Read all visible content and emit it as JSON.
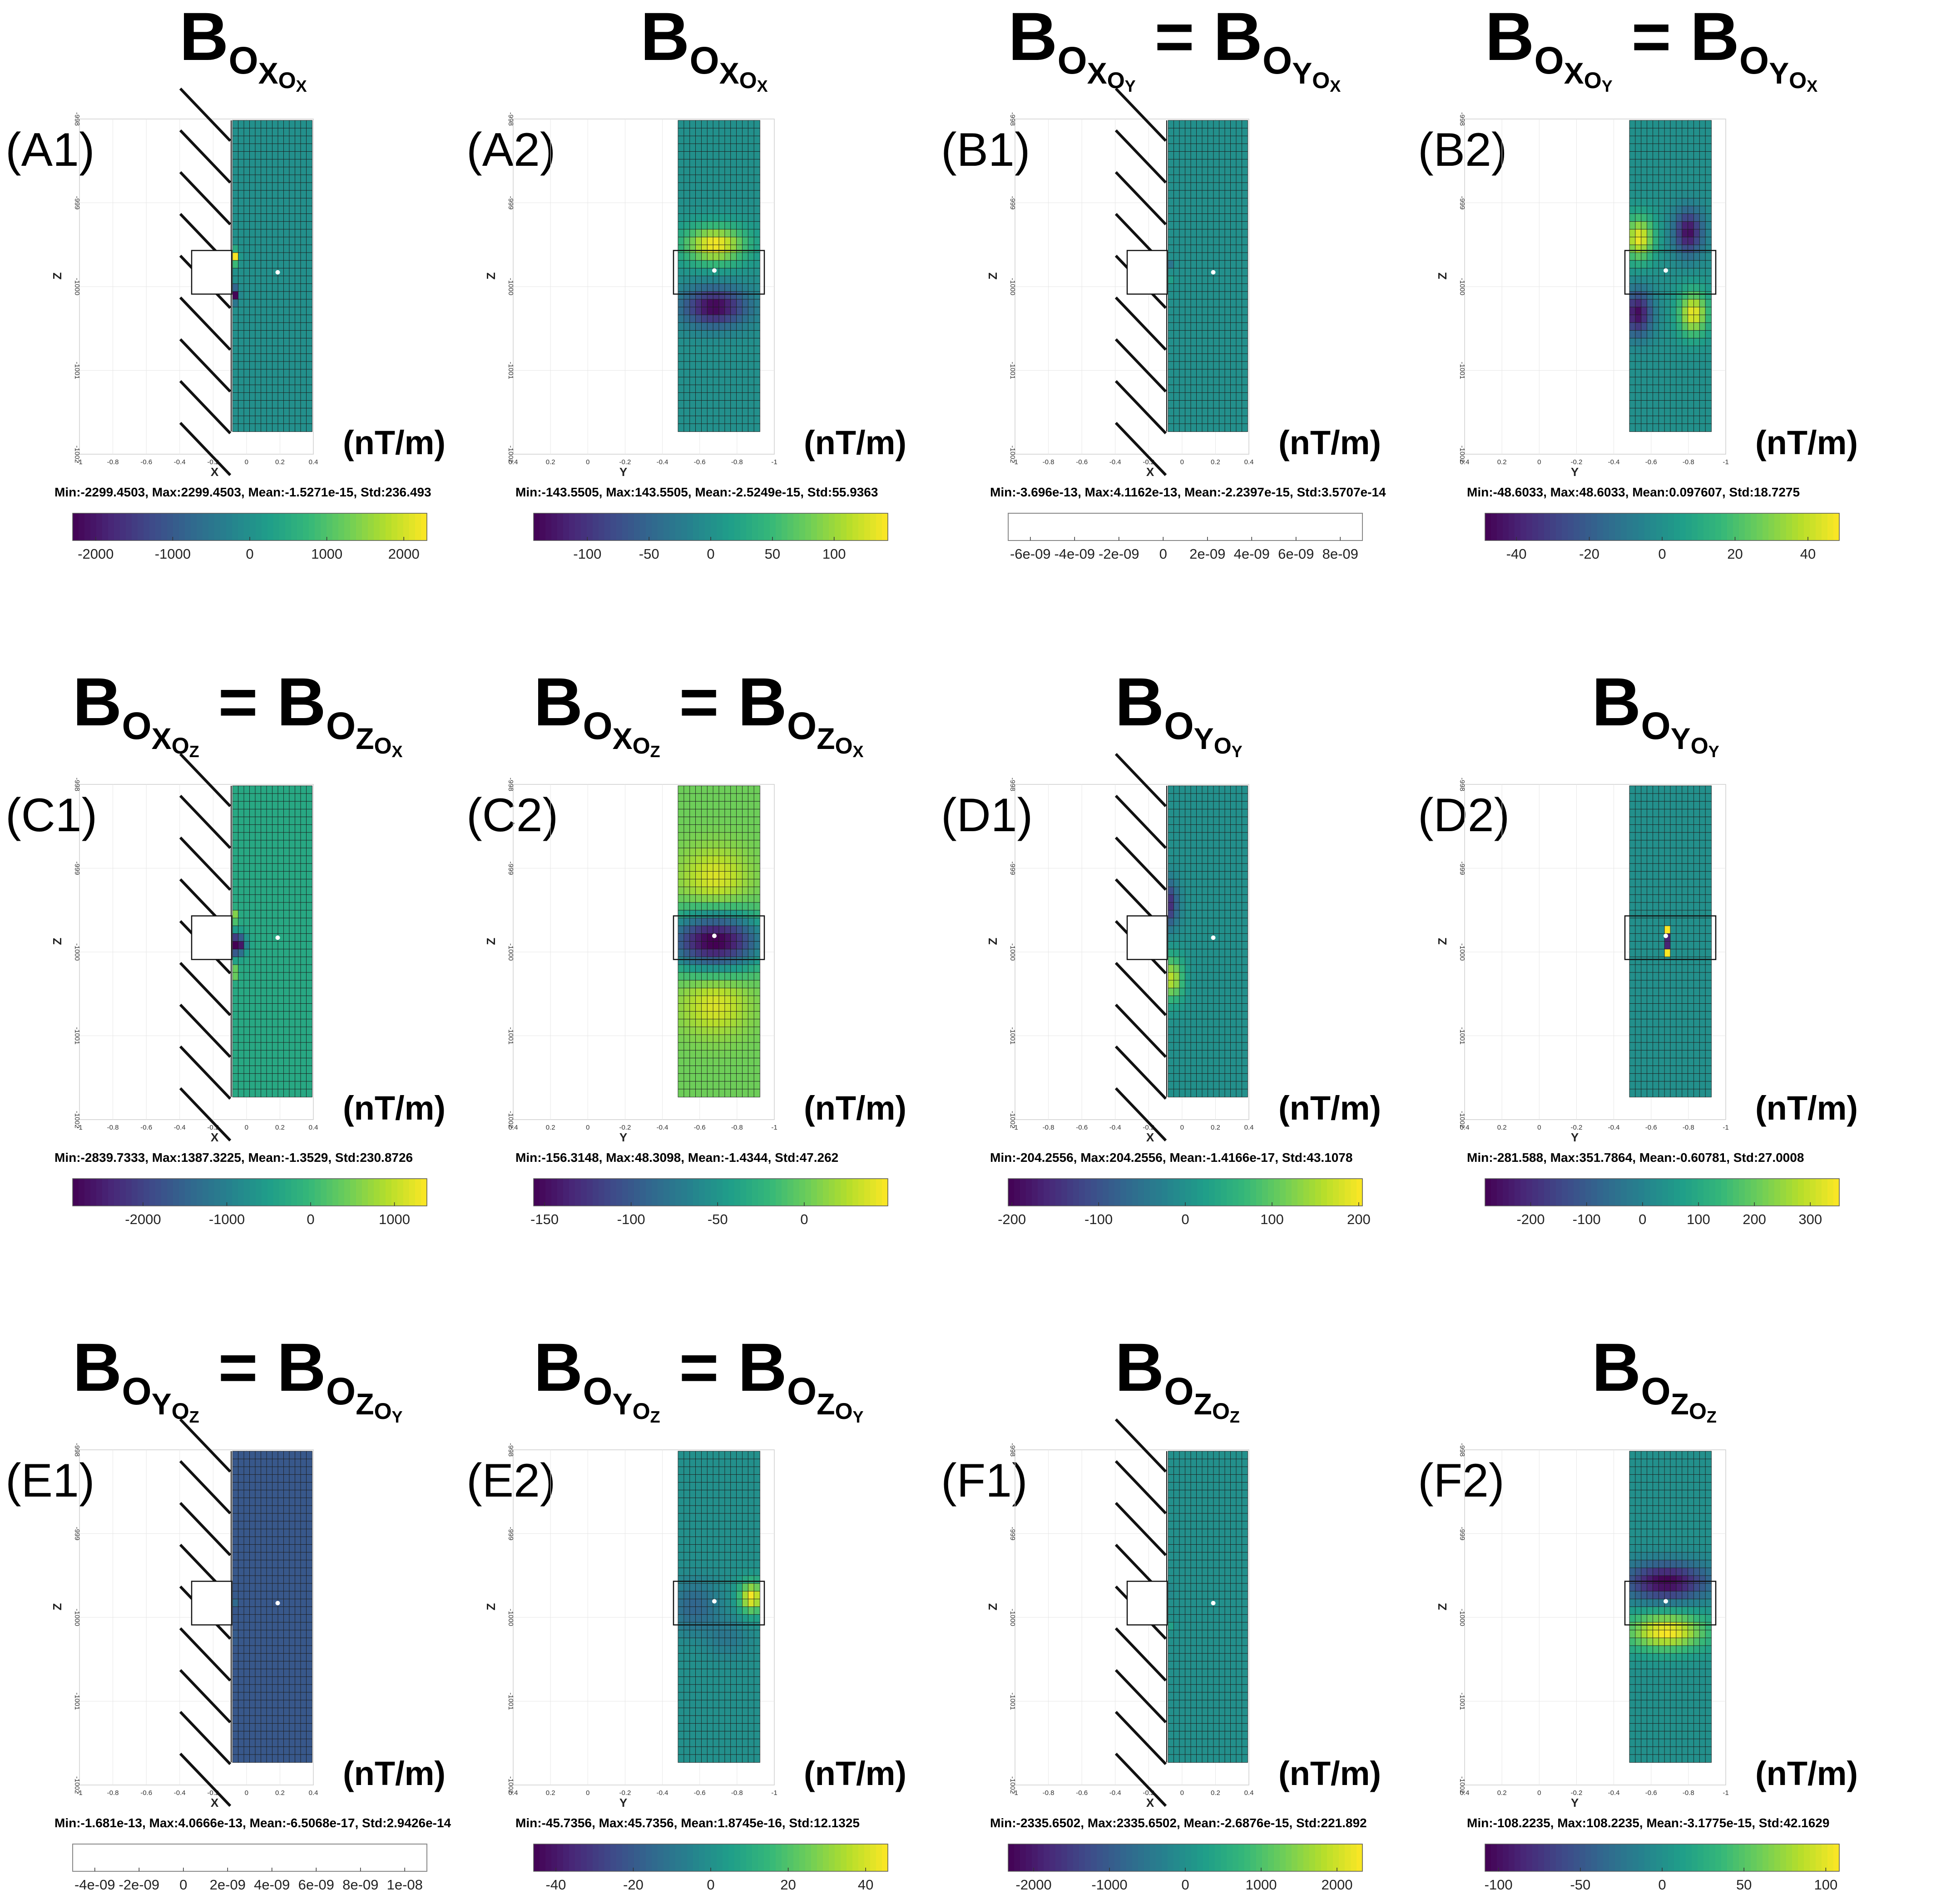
{
  "figure": {
    "unit_label": "(nT/m)",
    "colormap": [
      "#440154",
      "#482878",
      "#3e4a89",
      "#31688e",
      "#26828e",
      "#1f9e89",
      "#35b779",
      "#6ece58",
      "#b5de2b",
      "#fde725"
    ]
  },
  "chart_data": [
    {
      "id": "A1",
      "label": "(A1)",
      "type": "heatmap",
      "view": "X",
      "title": {
        "sub1": "X",
        "sub2": "X"
      },
      "xlabel": "X",
      "ylabel": "Z",
      "xticks": [
        "-1",
        "-0.8",
        "-0.6",
        "-0.4",
        "-0.2",
        "0",
        "0.2",
        "0.4"
      ],
      "zticks": [
        "-998",
        "-999",
        "-1000",
        "-1001",
        "-1002"
      ],
      "stats": "Min:-2299.4503, Max:2299.4503, Mean:-1.5271e-15, Std:236.493",
      "colorbar": {
        "min": -2299.4503,
        "max": 2299.4503,
        "ticks": [
          -2000,
          -1000,
          0,
          1000,
          2000
        ],
        "tick_labels": [
          "-2000",
          "-1000",
          "0",
          "1000",
          "2000"
        ],
        "blank": false
      },
      "pattern": "wall_antisym"
    },
    {
      "id": "A2",
      "label": "(A2)",
      "type": "heatmap",
      "view": "Y",
      "title": {
        "sub1": "X",
        "sub2": "X"
      },
      "xlabel": "Y",
      "ylabel": "Z",
      "xticks": [
        "0.4",
        "0.2",
        "0",
        "-0.2",
        "-0.4",
        "-0.6",
        "-0.8",
        "-1"
      ],
      "zticks": [
        "-998",
        "-999",
        "-1000",
        "-1001",
        "-1002"
      ],
      "stats": "Min:-143.5505, Max:143.5505, Mean:-2.5249e-15, Std:55.9363",
      "colorbar": {
        "min": -143.5505,
        "max": 143.5505,
        "ticks": [
          -100,
          -50,
          0,
          50,
          100
        ],
        "tick_labels": [
          "-100",
          "-50",
          "0",
          "50",
          "100"
        ],
        "blank": false
      },
      "pattern": "vertical_dipole_pos_top"
    },
    {
      "id": "B1",
      "label": "(B1)",
      "type": "heatmap",
      "view": "X",
      "title": {
        "sub1": "X",
        "sub2": "Y",
        "eq_sub1": "Y",
        "eq_sub2": "X"
      },
      "xlabel": "X",
      "ylabel": "Z",
      "xticks": [
        "-1",
        "-0.8",
        "-0.6",
        "-0.4",
        "-0.2",
        "0",
        "0.2",
        "0.4"
      ],
      "zticks": [
        "-998",
        "-999",
        "-1000",
        "-1001",
        "-1002"
      ],
      "stats": "Min:-3.696e-13, Max:4.1162e-13, Mean:-2.2397e-15, Std:3.5707e-14",
      "colorbar": {
        "min": -7e-09,
        "max": 9e-09,
        "ticks": [
          -6e-09,
          -4e-09,
          -2e-09,
          0,
          2e-09,
          4e-09,
          6e-09,
          8e-09
        ],
        "tick_labels": [
          "-6e-09",
          "-4e-09",
          "-2e-09",
          "0",
          "2e-09",
          "4e-09",
          "6e-09",
          "8e-09"
        ],
        "blank": true
      },
      "pattern": "wall_sparse"
    },
    {
      "id": "B2",
      "label": "(B2)",
      "type": "heatmap",
      "view": "Y",
      "title": {
        "sub1": "X",
        "sub2": "Y",
        "eq_sub1": "Y",
        "eq_sub2": "X"
      },
      "xlabel": "Y",
      "ylabel": "Z",
      "xticks": [
        "0.4",
        "0.2",
        "0",
        "-0.2",
        "-0.4",
        "-0.6",
        "-0.8",
        "-1"
      ],
      "zticks": [
        "-998",
        "-999",
        "-1000",
        "-1001",
        "-1002"
      ],
      "stats": "Min:-48.6033, Max:48.6033, Mean:0.097607, Std:18.7275",
      "colorbar": {
        "min": -48.6033,
        "max": 48.6033,
        "ticks": [
          -40,
          -20,
          0,
          20,
          40
        ],
        "tick_labels": [
          "-40",
          "-20",
          "0",
          "20",
          "40"
        ],
        "blank": false
      },
      "pattern": "quadrupole"
    },
    {
      "id": "C1",
      "label": "(C1)",
      "type": "heatmap",
      "view": "X",
      "title": {
        "sub1": "X",
        "sub2": "Z",
        "eq_sub1": "Z",
        "eq_sub2": "X"
      },
      "xlabel": "X",
      "ylabel": "Z",
      "xticks": [
        "-1",
        "-0.8",
        "-0.6",
        "-0.4",
        "-0.2",
        "0",
        "0.2",
        "0.4"
      ],
      "zticks": [
        "-998",
        "-999",
        "-1000",
        "-1001",
        "-1002"
      ],
      "stats": "Min:-2839.7333, Max:1387.3225, Mean:-1.3529, Std:230.8726",
      "colorbar": {
        "min": -2839.7333,
        "max": 1387.3225,
        "ticks": [
          -2000,
          -1000,
          0,
          1000
        ],
        "tick_labels": [
          "-2000",
          "-1000",
          "0",
          "1000"
        ],
        "blank": false
      },
      "pattern": "wall_sym"
    },
    {
      "id": "C2",
      "label": "(C2)",
      "type": "heatmap",
      "view": "Y",
      "title": {
        "sub1": "X",
        "sub2": "Z",
        "eq_sub1": "Z",
        "eq_sub2": "X"
      },
      "xlabel": "Y",
      "ylabel": "Z",
      "xticks": [
        "0.4",
        "0.2",
        "0",
        "-0.2",
        "-0.4",
        "-0.6",
        "-0.8",
        "-1"
      ],
      "zticks": [
        "-998",
        "-999",
        "-1000",
        "-1001",
        "-1002"
      ],
      "stats": "Min:-156.3148, Max:48.3098, Mean:-1.4344, Std:47.262",
      "colorbar": {
        "min": -156.3148,
        "max": 48.3098,
        "ticks": [
          -150,
          -100,
          -50,
          0
        ],
        "tick_labels": [
          "-150",
          "-100",
          "-50",
          "0"
        ],
        "blank": false
      },
      "pattern": "center_trough"
    },
    {
      "id": "D1",
      "label": "(D1)",
      "type": "heatmap",
      "view": "X",
      "title": {
        "sub1": "Y",
        "sub2": "Y"
      },
      "xlabel": "X",
      "ylabel": "Z",
      "xticks": [
        "-1",
        "-0.8",
        "-0.6",
        "-0.4",
        "-0.2",
        "0",
        "0.2",
        "0.4"
      ],
      "zticks": [
        "-998",
        "-999",
        "-1000",
        "-1001",
        "-1002"
      ],
      "stats": "Min:-204.2556, Max:204.2556, Mean:-1.4166e-17, Std:43.1078",
      "colorbar": {
        "min": -204.2556,
        "max": 204.2556,
        "ticks": [
          -200,
          -100,
          0,
          100,
          200
        ],
        "tick_labels": [
          "-200",
          "-100",
          "0",
          "100",
          "200"
        ],
        "blank": false
      },
      "pattern": "wall_dipole_soft"
    },
    {
      "id": "D2",
      "label": "(D2)",
      "type": "heatmap",
      "view": "Y",
      "title": {
        "sub1": "Y",
        "sub2": "Y"
      },
      "xlabel": "Y",
      "ylabel": "Z",
      "xticks": [
        "0.4",
        "0.2",
        "0",
        "-0.2",
        "-0.4",
        "-0.6",
        "-0.8",
        "-1"
      ],
      "zticks": [
        "-998",
        "-999",
        "-1000",
        "-1001",
        "-1002"
      ],
      "stats": "Min:-281.588, Max:351.7864, Mean:-0.60781, Std:27.0008",
      "colorbar": {
        "min": -281.588,
        "max": 351.7864,
        "ticks": [
          -200,
          -100,
          0,
          100,
          200,
          300
        ],
        "tick_labels": [
          "-200",
          "-100",
          "0",
          "100",
          "200",
          "300"
        ],
        "blank": false
      },
      "pattern": "center_spikes"
    },
    {
      "id": "E1",
      "label": "(E1)",
      "type": "heatmap",
      "view": "X",
      "title": {
        "sub1": "Y",
        "sub2": "Z",
        "eq_sub1": "Z",
        "eq_sub2": "Y"
      },
      "xlabel": "X",
      "ylabel": "Z",
      "xticks": [
        "-1",
        "-0.8",
        "-0.6",
        "-0.4",
        "-0.2",
        "0",
        "0.2",
        "0.4"
      ],
      "zticks": [
        "-998",
        "-999",
        "-1000",
        "-1001",
        "-1002"
      ],
      "stats": "Min:-1.681e-13, Max:4.0666e-13, Mean:-6.5068e-17, Std:2.9426e-14",
      "colorbar": {
        "min": -5e-09,
        "max": 1.1e-08,
        "ticks": [
          -4e-09,
          -2e-09,
          0,
          2e-09,
          4e-09,
          6e-09,
          8e-09,
          1e-08
        ],
        "tick_labels": [
          "-4e-09",
          "-2e-09",
          "0",
          "2e-09",
          "4e-09",
          "6e-09",
          "8e-09",
          "1e-08"
        ],
        "blank": true
      },
      "pattern": "wall_sparse_dark"
    },
    {
      "id": "E2",
      "label": "(E2)",
      "type": "heatmap",
      "view": "Y",
      "title": {
        "sub1": "Y",
        "sub2": "Z",
        "eq_sub1": "Z",
        "eq_sub2": "Y"
      },
      "xlabel": "Y",
      "ylabel": "Z",
      "xticks": [
        "0.4",
        "0.2",
        "0",
        "-0.2",
        "-0.4",
        "-0.6",
        "-0.8",
        "-1"
      ],
      "zticks": [
        "-998",
        "-999",
        "-1000",
        "-1001",
        "-1002"
      ],
      "stats": "Min:-45.7356, Max:45.7356, Mean:1.8745e-16, Std:12.1325",
      "colorbar": {
        "min": -45.7356,
        "max": 45.7356,
        "ticks": [
          -40,
          -20,
          0,
          20,
          40
        ],
        "tick_labels": [
          "-40",
          "-20",
          "0",
          "20",
          "40"
        ],
        "blank": false
      },
      "pattern": "lateral_dipole"
    },
    {
      "id": "F1",
      "label": "(F1)",
      "type": "heatmap",
      "view": "X",
      "title": {
        "sub1": "Z",
        "sub2": "Z"
      },
      "xlabel": "X",
      "ylabel": "Z",
      "xticks": [
        "-1",
        "-0.8",
        "-0.6",
        "-0.4",
        "-0.2",
        "0",
        "0.2",
        "0.4"
      ],
      "zticks": [
        "-998",
        "-999",
        "-1000",
        "-1001",
        "-1002"
      ],
      "stats": "Min:-2335.6502, Max:2335.6502, Mean:-2.6876e-15, Std:221.892",
      "colorbar": {
        "min": -2335.6502,
        "max": 2335.6502,
        "ticks": [
          -2000,
          -1000,
          0,
          1000,
          2000
        ],
        "tick_labels": [
          "-2000",
          "-1000",
          "0",
          "1000",
          "2000"
        ],
        "blank": false
      },
      "pattern": "wall_tiny"
    },
    {
      "id": "F2",
      "label": "(F2)",
      "type": "heatmap",
      "view": "Y",
      "title": {
        "sub1": "Z",
        "sub2": "Z"
      },
      "xlabel": "Y",
      "ylabel": "Z",
      "xticks": [
        "0.4",
        "0.2",
        "0",
        "-0.2",
        "-0.4",
        "-0.6",
        "-0.8",
        "-1"
      ],
      "zticks": [
        "-998",
        "-999",
        "-1000",
        "-1001",
        "-1002"
      ],
      "stats": "Min:-108.2235, Max:108.2235, Mean:-3.1775e-15, Std:42.1629",
      "colorbar": {
        "min": -108.2235,
        "max": 108.2235,
        "ticks": [
          -100,
          -50,
          0,
          50,
          100
        ],
        "tick_labels": [
          "-100",
          "-50",
          "0",
          "50",
          "100"
        ],
        "blank": false
      },
      "pattern": "vertical_dipole_neg_top"
    }
  ]
}
